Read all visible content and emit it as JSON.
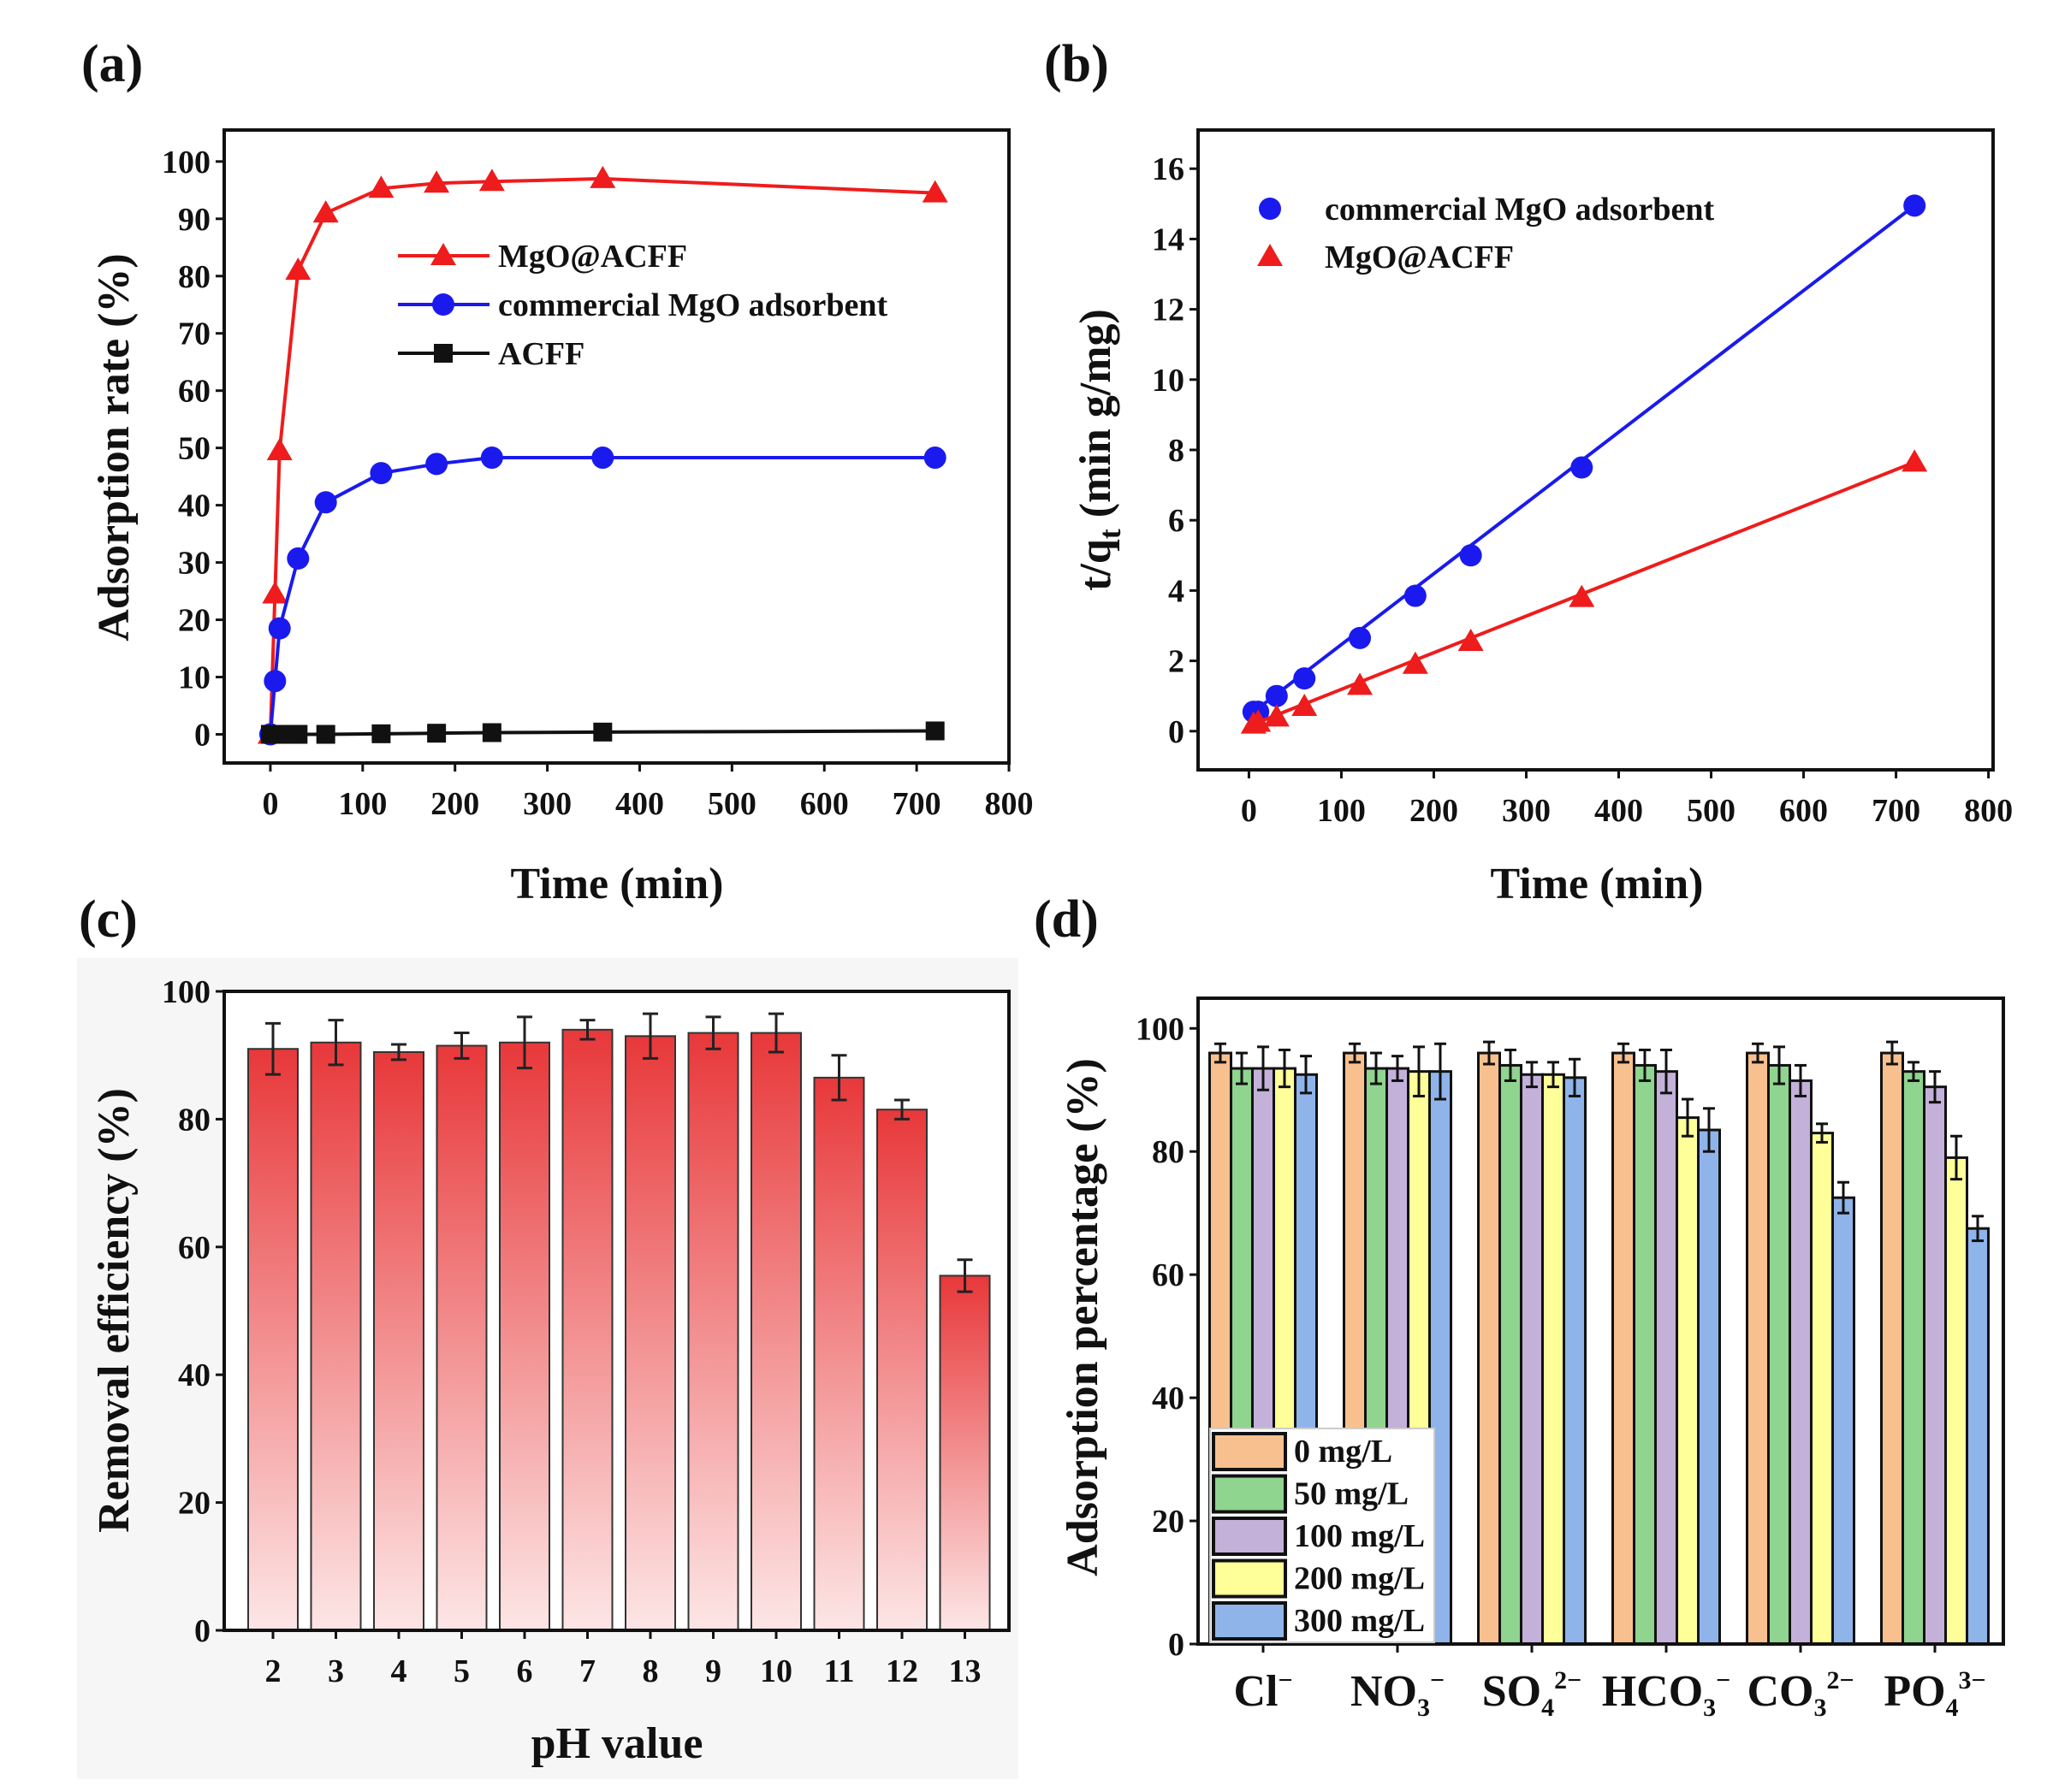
{
  "chart_data": [
    {
      "panel": "(a)",
      "type": "line",
      "xlabel": "Time (min)",
      "ylabel": "Adsorption rate (%)",
      "xlim": [
        -50,
        800
      ],
      "ylim": [
        -5,
        105.5
      ],
      "xticks": [
        0,
        100,
        200,
        300,
        400,
        500,
        600,
        700,
        800
      ],
      "yticks": [
        0,
        10,
        20,
        30,
        40,
        50,
        60,
        70,
        80,
        90,
        100
      ],
      "legend_position": "upper-center",
      "series": [
        {
          "name": "MgO@ACFF",
          "color": "#ee1c1c",
          "marker": "triangle",
          "x": [
            0,
            5,
            10,
            30,
            60,
            120,
            180,
            240,
            360,
            720
          ],
          "y": [
            0,
            24.5,
            49.5,
            81,
            91,
            95.3,
            96.2,
            96.5,
            97,
            94.5
          ]
        },
        {
          "name": "commercial MgO adsorbent",
          "color": "#1a1aee",
          "marker": "circle",
          "x": [
            0,
            5,
            10,
            30,
            60,
            120,
            180,
            240,
            360,
            720
          ],
          "y": [
            0,
            9.3,
            18.5,
            30.7,
            40.5,
            45.6,
            47.2,
            48.3,
            48.3,
            48.3
          ]
        },
        {
          "name": "ACFF",
          "color": "#111111",
          "marker": "square",
          "x": [
            0,
            10,
            20,
            30,
            60,
            120,
            180,
            240,
            360,
            720
          ],
          "y": [
            0,
            0,
            0,
            0,
            0,
            0.1,
            0.2,
            0.3,
            0.4,
            0.6
          ]
        }
      ]
    },
    {
      "panel": "(b)",
      "type": "scatter",
      "xlabel": "Time (min)",
      "ylabel": {
        "pre": "t/q",
        "sub": "t",
        "post": " (min g/mg)"
      },
      "xlim": [
        -55,
        805
      ],
      "ylim": [
        -1.1,
        17.1
      ],
      "xticks": [
        0,
        100,
        200,
        300,
        400,
        500,
        600,
        700,
        800
      ],
      "yticks": [
        0,
        2,
        4,
        6,
        8,
        10,
        12,
        14,
        16
      ],
      "legend_position": "top-left",
      "series": [
        {
          "name": "commercial MgO adsorbent",
          "color": "#1a1aee",
          "marker": "circle",
          "x": [
            5,
            10,
            30,
            60,
            120,
            180,
            240,
            360,
            720
          ],
          "y": [
            0.55,
            0.55,
            1.0,
            1.5,
            2.65,
            3.85,
            5.0,
            7.5,
            14.95
          ]
        },
        {
          "name": "MgO@ACFF",
          "color": "#ee1c1c",
          "marker": "triangle",
          "x": [
            5,
            10,
            30,
            60,
            120,
            180,
            240,
            360,
            720
          ],
          "y": [
            0.2,
            0.25,
            0.4,
            0.7,
            1.3,
            1.9,
            2.55,
            3.8,
            7.65
          ]
        }
      ]
    },
    {
      "panel": "(c)",
      "type": "bar",
      "xlabel": "pH value",
      "ylabel": "Removal efficiency (%)",
      "ylim": [
        0,
        100
      ],
      "yticks": [
        0,
        20,
        40,
        60,
        80,
        100
      ],
      "categories": [
        "2",
        "3",
        "4",
        "5",
        "6",
        "7",
        "8",
        "9",
        "10",
        "11",
        "12",
        "13"
      ],
      "values": [
        91,
        92,
        90.5,
        91.5,
        92,
        94,
        93,
        93.5,
        93.5,
        86.5,
        81.5,
        55.5
      ],
      "errors": [
        4,
        3.5,
        1.2,
        2,
        4,
        1.5,
        3.5,
        2.5,
        3,
        3.5,
        1.5,
        2.5
      ],
      "color_top": "#e8383a",
      "color_bottom": "#fde6e6"
    },
    {
      "panel": "(d)",
      "type": "bar",
      "xlabel": "",
      "ylabel": "Adsorption percentage (%)",
      "ylim": [
        0,
        104.9
      ],
      "yticks": [
        0,
        20,
        40,
        60,
        80,
        100
      ],
      "legend_position": "bottom-left",
      "categories": [
        {
          "base": "Cl",
          "sub": "",
          "sup": "−"
        },
        {
          "base": "NO",
          "sub": "3",
          "sup": "−"
        },
        {
          "base": "SO",
          "sub": "4",
          "sup": "2−"
        },
        {
          "base": "HCO",
          "sub": "3",
          "sup": "−"
        },
        {
          "base": "CO",
          "sub": "3",
          "sup": "2−"
        },
        {
          "base": "PO",
          "sub": "4",
          "sup": "3−"
        }
      ],
      "series": [
        {
          "name": "0 mg/L",
          "color": "#f9c08f",
          "values": [
            96,
            96,
            96,
            96,
            96,
            96
          ],
          "errors": [
            1.5,
            1.5,
            1.8,
            1.5,
            1.5,
            1.8
          ]
        },
        {
          "name": "50 mg/L",
          "color": "#8fd48f",
          "values": [
            93.5,
            93.5,
            94,
            94,
            94,
            93
          ],
          "errors": [
            2.5,
            2.5,
            2.5,
            2.5,
            3,
            1.5
          ]
        },
        {
          "name": "100 mg/L",
          "color": "#c3b1d9",
          "values": [
            93.5,
            93.5,
            92.5,
            93,
            91.5,
            90.5
          ],
          "errors": [
            3.5,
            2,
            2,
            3.5,
            2.5,
            2.5
          ]
        },
        {
          "name": "200 mg/L",
          "color": "#ffff99",
          "values": [
            93.5,
            93,
            92.5,
            85.5,
            83,
            79
          ],
          "errors": [
            3,
            4,
            2,
            3,
            1.5,
            3.5
          ]
        },
        {
          "name": "300 mg/L",
          "color": "#8fb4ea",
          "values": [
            92.5,
            93,
            92,
            83.5,
            72.5,
            67.5
          ],
          "errors": [
            3,
            4.5,
            3,
            3.5,
            2.5,
            2
          ]
        }
      ]
    }
  ],
  "panel_labels": [
    "(a)",
    "(b)",
    "(c)",
    "(d)"
  ]
}
